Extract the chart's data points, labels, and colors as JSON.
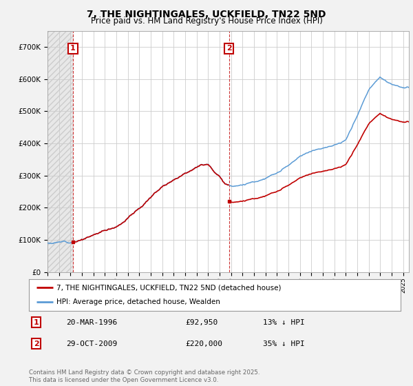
{
  "title": "7, THE NIGHTINGALES, UCKFIELD, TN22 5ND",
  "subtitle": "Price paid vs. HM Land Registry's House Price Index (HPI)",
  "legend_line1": "7, THE NIGHTINGALES, UCKFIELD, TN22 5ND (detached house)",
  "legend_line2": "HPI: Average price, detached house, Wealden",
  "annotation1_date": "20-MAR-1996",
  "annotation1_price": "£92,950",
  "annotation1_pct": "13% ↓ HPI",
  "annotation2_date": "29-OCT-2009",
  "annotation2_price": "£220,000",
  "annotation2_pct": "35% ↓ HPI",
  "footer": "Contains HM Land Registry data © Crown copyright and database right 2025.\nThis data is licensed under the Open Government Licence v3.0.",
  "hpi_color": "#5b9bd5",
  "price_color": "#c00000",
  "annotation_color": "#c00000",
  "background_color": "#f2f2f2",
  "plot_bg_color": "#ffffff",
  "ylim": [
    0,
    750000
  ],
  "xlim_start": 1994.0,
  "xlim_end": 2025.5,
  "t1": 1996.22,
  "t2": 2009.83,
  "price1": 92950,
  "price2": 220000
}
